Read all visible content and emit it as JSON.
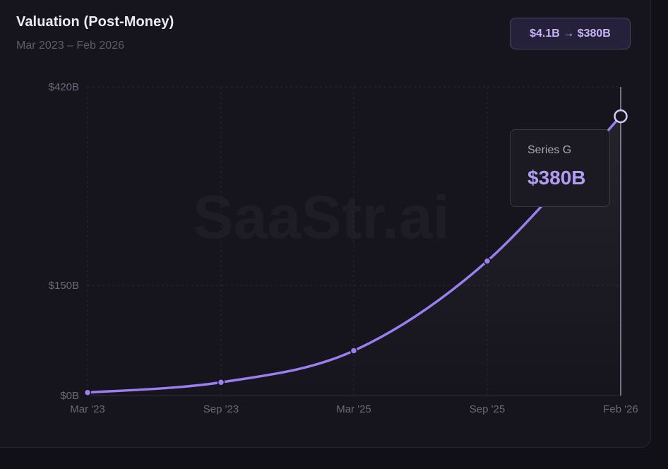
{
  "header": {
    "title": "Valuation (Post-Money)",
    "subtitle": "Mar 2023 – Feb 2026",
    "badge": "$4.1B → $380B"
  },
  "watermark": "SaaStr.ai",
  "tooltip": {
    "label": "Series G",
    "value": "$380B"
  },
  "colors": {
    "line": "#9b7ff0",
    "point": "#9b7ff0",
    "background": "#16151d"
  },
  "chart_data": {
    "type": "line",
    "x": [
      "2023-03",
      "2023-09",
      "2025-03",
      "2025-09",
      "2026-02"
    ],
    "x_tick_labels": [
      "Mar '23",
      "Sep '23",
      "Mar '25",
      "Sep '25",
      "Feb '26"
    ],
    "series": [
      {
        "values": [
          4.1,
          18,
          61,
          183,
          380
        ]
      }
    ],
    "y_ticks": [
      0,
      150,
      420
    ],
    "y_tick_labels": [
      "$0B",
      "$150B",
      "$420B"
    ],
    "ylim": [
      0,
      420
    ],
    "grid": true,
    "highlighted_point_index": 4
  }
}
